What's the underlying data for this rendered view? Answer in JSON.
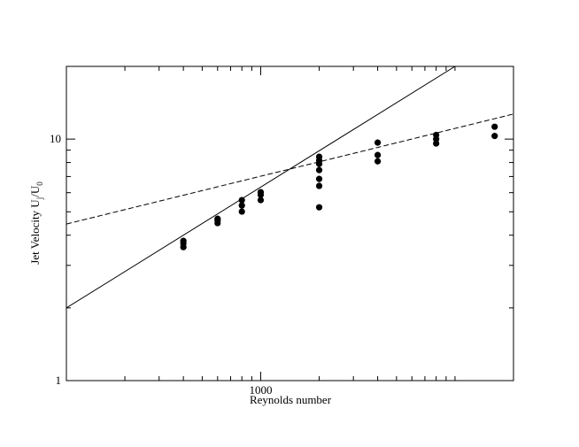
{
  "chart_data": {
    "type": "scatter",
    "xlabel": "Reynolds number",
    "ylabel_parts": [
      "Jet Velocity U",
      "j",
      "/U",
      "0"
    ],
    "xscale": "log",
    "yscale": "log",
    "xlim": [
      100,
      20000
    ],
    "ylim": [
      1,
      20
    ],
    "xticks": [
      1000
    ],
    "yticks": [
      1,
      10
    ],
    "xminorticks": [
      200,
      300,
      400,
      500,
      600,
      700,
      800,
      900,
      2000,
      3000,
      4000,
      5000,
      6000,
      7000,
      8000,
      9000,
      10000
    ],
    "yminorticks": [
      2,
      3,
      4,
      5,
      6,
      7,
      8,
      9
    ],
    "series": [
      {
        "color": "#000000",
        "x": [
          400,
          400,
          400,
          600,
          600,
          600,
          800,
          800,
          800,
          1000,
          1000,
          1000,
          2000,
          2000,
          2000,
          2000,
          2000,
          2000,
          2000,
          4000,
          4000,
          4000,
          8000,
          8000,
          8000,
          16000,
          16000
        ],
        "values": [
          3.79,
          3.7,
          3.57,
          4.68,
          4.61,
          4.49,
          5.59,
          5.31,
          5.01,
          6.03,
          5.88,
          5.59,
          8.45,
          8.16,
          7.89,
          7.44,
          6.84,
          6.4,
          5.22,
          9.67,
          8.59,
          8.09,
          10.4,
          10.0,
          9.59,
          11.25,
          10.3
        ]
      }
    ],
    "lines": [
      {
        "color": "#000000",
        "dashed": false,
        "x": [
          100,
          10000
        ],
        "values": [
          2,
          20
        ]
      },
      {
        "color": "#000000",
        "dashed": true,
        "x": [
          100,
          20000
        ],
        "values": [
          4.45,
          12.7
        ]
      }
    ]
  }
}
